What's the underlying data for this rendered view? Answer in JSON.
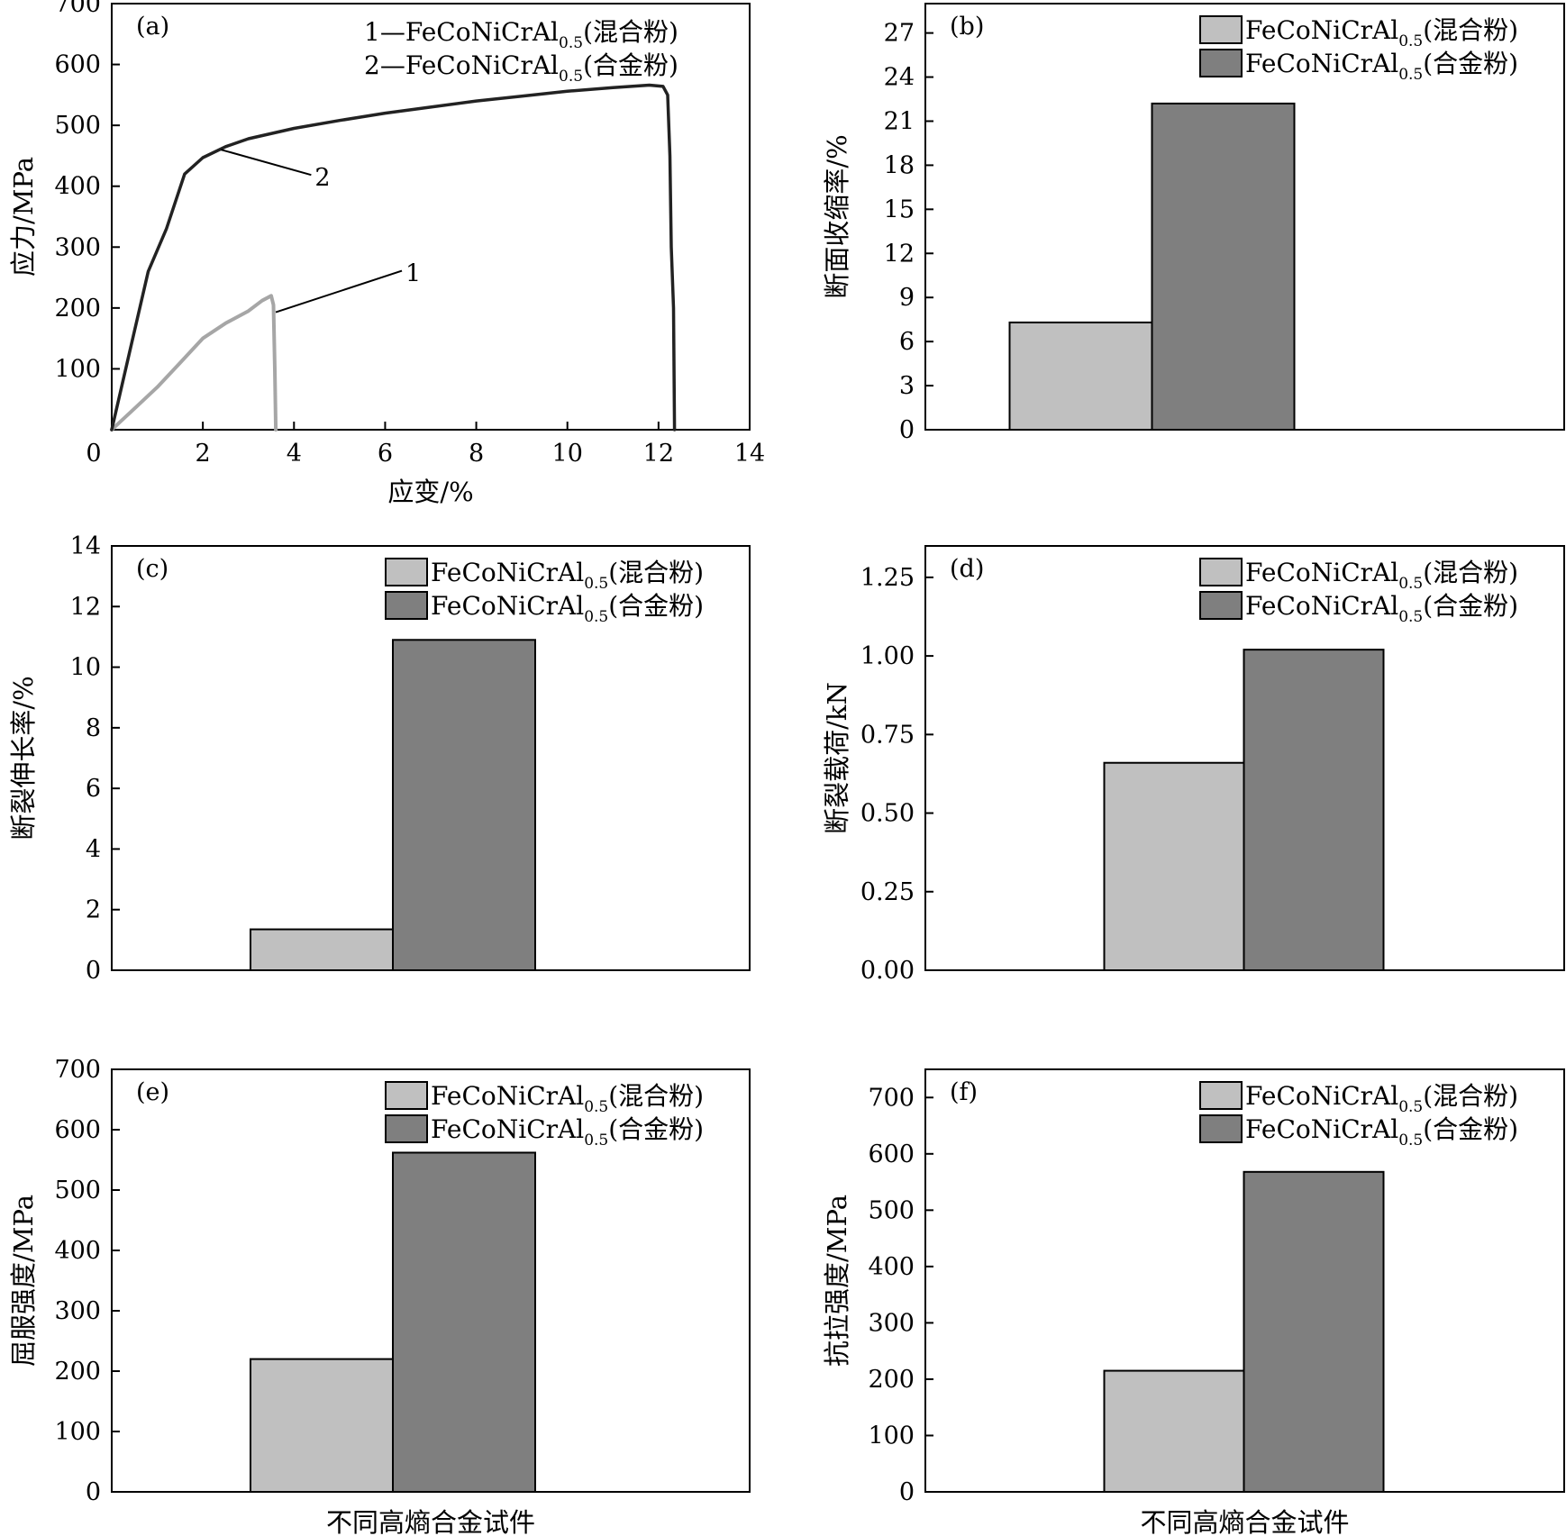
{
  "colors": {
    "mixed_bar": "#c0c0c0",
    "alloy_bar": "#7f7f7f",
    "curve_mixed": "#a6a6a6",
    "curve_alloy": "#222222",
    "axis": "#000000"
  },
  "chart_data": [
    {
      "id": "a",
      "type": "line",
      "panel_label": "(a)",
      "xlabel": "应变/%",
      "ylabel": "应力/MPa",
      "xlim": [
        0,
        14
      ],
      "ylim": [
        0,
        700
      ],
      "xticks": [
        0,
        2,
        4,
        6,
        8,
        10,
        12,
        14
      ],
      "yticks": [
        100,
        200,
        300,
        400,
        500,
        600,
        700
      ],
      "legend_position": "top-right",
      "series": [
        {
          "key": "1",
          "name": "FeCoNiCrAl",
          "name_sub": "0.5",
          "name_suffix": "(混合粉)",
          "legend_prefix": "1—",
          "points": [
            [
              0,
              0
            ],
            [
              0.5,
              35
            ],
            [
              1,
              70
            ],
            [
              1.5,
              110
            ],
            [
              2,
              150
            ],
            [
              2.5,
              175
            ],
            [
              3,
              195
            ],
            [
              3.3,
              212
            ],
            [
              3.5,
              220
            ],
            [
              3.55,
              205
            ],
            [
              3.58,
              100
            ],
            [
              3.6,
              0
            ]
          ]
        },
        {
          "key": "2",
          "name": "FeCoNiCrAl",
          "name_sub": "0.5",
          "name_suffix": "(合金粉)",
          "legend_prefix": "2—",
          "points": [
            [
              0,
              0
            ],
            [
              0.4,
              130
            ],
            [
              0.8,
              260
            ],
            [
              1.2,
              330
            ],
            [
              1.6,
              420
            ],
            [
              2,
              447
            ],
            [
              2.5,
              465
            ],
            [
              3,
              478
            ],
            [
              4,
              495
            ],
            [
              5,
              508
            ],
            [
              6,
              520
            ],
            [
              7,
              530
            ],
            [
              8,
              540
            ],
            [
              9,
              548
            ],
            [
              10,
              556
            ],
            [
              11,
              562
            ],
            [
              11.8,
              566
            ],
            [
              12.1,
              564
            ],
            [
              12.2,
              550
            ],
            [
              12.25,
              450
            ],
            [
              12.28,
              300
            ],
            [
              12.33,
              200
            ],
            [
              12.35,
              0
            ]
          ]
        }
      ],
      "annotations": [
        {
          "text": "2",
          "series": "2",
          "at_x": 2.4,
          "at_y": 460
        },
        {
          "text": "1",
          "series": "1",
          "at_x": 3.6,
          "at_y": 193
        }
      ]
    },
    {
      "id": "b",
      "type": "bar",
      "panel_label": "(b)",
      "xlabel": "",
      "ylabel": "断面收缩率/%",
      "ylim": [
        0,
        29
      ],
      "yticks": [
        0,
        3,
        6,
        9,
        12,
        15,
        18,
        21,
        24,
        27
      ],
      "tick_decimals": 0,
      "legend_position": "top-right",
      "series": [
        {
          "name": "FeCoNiCrAl",
          "name_sub": "0.5",
          "name_suffix": "(混合粉)",
          "value": 7.3
        },
        {
          "name": "FeCoNiCrAl",
          "name_sub": "0.5",
          "name_suffix": "(合金粉)",
          "value": 22.2
        }
      ]
    },
    {
      "id": "c",
      "type": "bar",
      "panel_label": "(c)",
      "xlabel": "",
      "ylabel": "断裂伸长率/%",
      "ylim": [
        0,
        14
      ],
      "yticks": [
        0,
        2,
        4,
        6,
        8,
        10,
        12,
        14
      ],
      "tick_decimals": 0,
      "legend_position": "top-right",
      "series": [
        {
          "name": "FeCoNiCrAl",
          "name_sub": "0.5",
          "name_suffix": "(混合粉)",
          "value": 1.35
        },
        {
          "name": "FeCoNiCrAl",
          "name_sub": "0.5",
          "name_suffix": "(合金粉)",
          "value": 10.9
        }
      ]
    },
    {
      "id": "d",
      "type": "bar",
      "panel_label": "(d)",
      "xlabel": "",
      "ylabel": "断裂载荷/kN",
      "ylim": [
        0,
        1.35
      ],
      "yticks": [
        0,
        0.25,
        0.5,
        0.75,
        1.0,
        1.25
      ],
      "tick_decimals": 2,
      "legend_position": "top-right",
      "series": [
        {
          "name": "FeCoNiCrAl",
          "name_sub": "0.5",
          "name_suffix": "(混合粉)",
          "value": 0.66
        },
        {
          "name": "FeCoNiCrAl",
          "name_sub": "0.5",
          "name_suffix": "(合金粉)",
          "value": 1.02
        }
      ]
    },
    {
      "id": "e",
      "type": "bar",
      "panel_label": "(e)",
      "xlabel": "不同高熵合金试件",
      "ylabel": "屈服强度/MPa",
      "ylim": [
        0,
        700
      ],
      "yticks": [
        0,
        100,
        200,
        300,
        400,
        500,
        600,
        700
      ],
      "tick_decimals": 0,
      "legend_position": "top-right",
      "series": [
        {
          "name": "FeCoNiCrAl",
          "name_sub": "0.5",
          "name_suffix": "(混合粉)",
          "value": 220
        },
        {
          "name": "FeCoNiCrAl",
          "name_sub": "0.5",
          "name_suffix": "(合金粉)",
          "value": 562
        }
      ]
    },
    {
      "id": "f",
      "type": "bar",
      "panel_label": "(f)",
      "xlabel": "不同高熵合金试件",
      "ylabel": "抗拉强度/MPa",
      "ylim": [
        0,
        750
      ],
      "yticks": [
        0,
        100,
        200,
        300,
        400,
        500,
        600,
        700
      ],
      "tick_decimals": 0,
      "legend_position": "top-right",
      "series": [
        {
          "name": "FeCoNiCrAl",
          "name_sub": "0.5",
          "name_suffix": "(混合粉)",
          "value": 215
        },
        {
          "name": "FeCoNiCrAl",
          "name_sub": "0.5",
          "name_suffix": "(合金粉)",
          "value": 568
        }
      ]
    }
  ]
}
